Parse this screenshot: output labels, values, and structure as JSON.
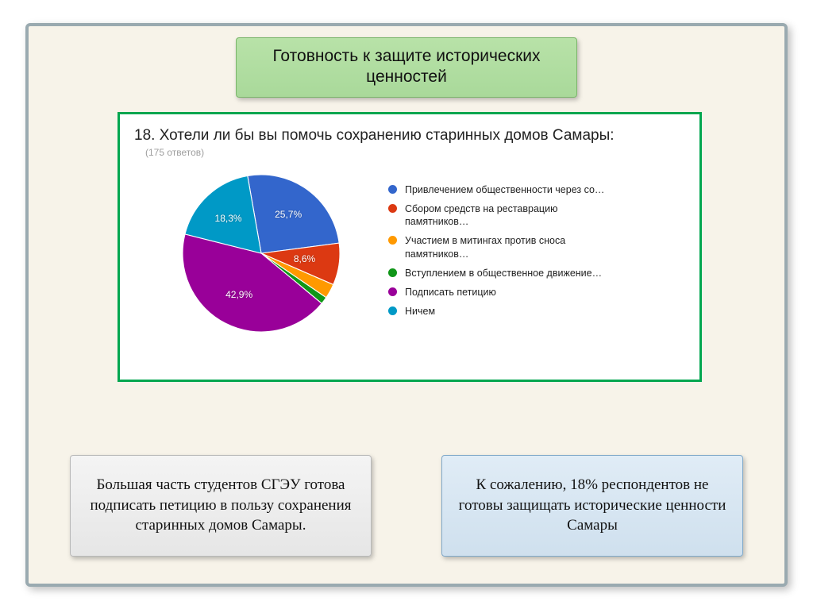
{
  "slide": {
    "background_color": "#f7f3e9",
    "frame_color": "#9aaab0"
  },
  "title": {
    "text": "Готовность к защите исторических ценностей",
    "bg_top": "#b8e2a8",
    "bg_bottom": "#a9d99a",
    "border": "#7ab56a",
    "fontsize": 21
  },
  "chart": {
    "type": "pie",
    "border_color": "#00a64f",
    "question": "18. Хотели ли бы вы помочь сохранению старинных домов Самары:",
    "responses_label": "(175 ответов)",
    "question_fontsize": 19,
    "responses_fontsize": 12,
    "responses_color": "#9e9e9e",
    "label_fontsize": 12,
    "legend_fontsize": 12.5,
    "slices": [
      {
        "label": "Привлечением общественности через со…",
        "value": 25.7,
        "color": "#3366cc",
        "show_pct": true
      },
      {
        "label": "Сбором средств на реставрацию памятников…",
        "value": 8.6,
        "color": "#dc3912",
        "show_pct": true
      },
      {
        "label": "Участием в митингах против сноса памятников…",
        "value": 3.0,
        "color": "#ff9900",
        "show_pct": false
      },
      {
        "label": "Вступлением в общественное движение…",
        "value": 1.5,
        "color": "#109618",
        "show_pct": false
      },
      {
        "label": "Подписать петицию",
        "value": 42.9,
        "color": "#990099",
        "show_pct": true
      },
      {
        "label": "Ничем",
        "value": 18.3,
        "color": "#0099c6",
        "show_pct": true
      }
    ],
    "start_angle_deg": 260
  },
  "bottom_left": {
    "text": "Большая часть студентов СГЭУ готова подписать петицию в пользу сохранения старинных домов Самары.",
    "bg_top": "#f4f4f4",
    "bg_bottom": "#e6e6e6",
    "border": "#b8b8b8"
  },
  "bottom_right": {
    "text": "К сожалению, 18% респондентов не готовы защищать исторические ценности Самары",
    "bg_top": "#e0ecf6",
    "bg_bottom": "#cfe0ee",
    "border": "#7fa8c9"
  }
}
